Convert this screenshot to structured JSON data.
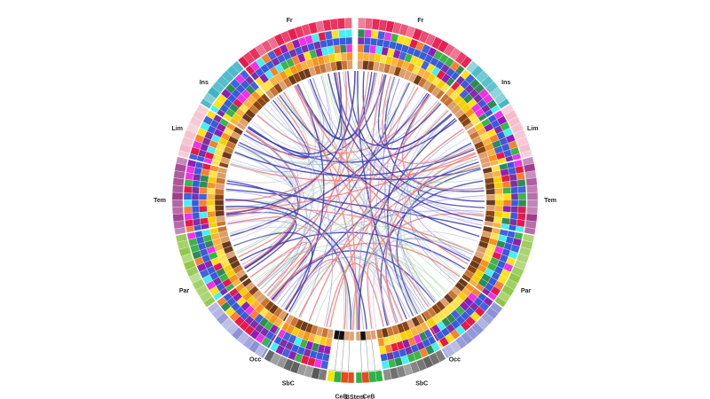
{
  "lobes": [
    {
      "label": "Fr"
    },
    {
      "label": "Fr"
    },
    {
      "label": "Ins"
    },
    {
      "label": "Ins"
    },
    {
      "label": "Lim"
    },
    {
      "label": "Lim"
    },
    {
      "label": "Tem"
    },
    {
      "label": "Tem"
    },
    {
      "label": "Par"
    },
    {
      "label": "Par"
    },
    {
      "label": "Occ"
    },
    {
      "label": "Occ"
    },
    {
      "label": "SbC"
    },
    {
      "label": "SbC"
    },
    {
      "label": "CeB"
    },
    {
      "label": "BStem"
    },
    {
      "label": "CeB"
    }
  ]
}
